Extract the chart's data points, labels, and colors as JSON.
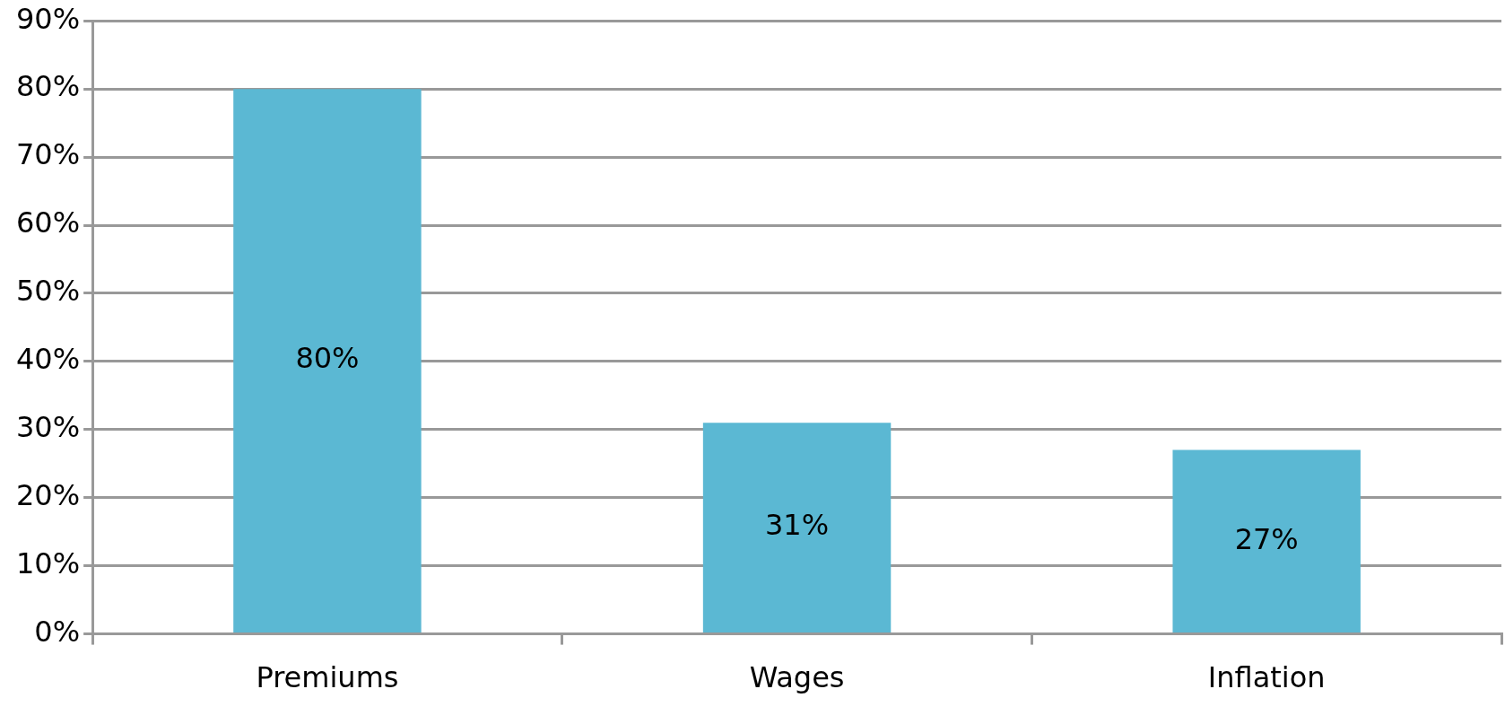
{
  "chart_data": {
    "type": "bar",
    "categories": [
      "Premiums",
      "Wages",
      "Inflation"
    ],
    "values": [
      80,
      31,
      27
    ],
    "color": "#5bb8d3",
    "ylim": [
      0,
      90
    ],
    "yticks": [
      {
        "value": 0,
        "label": "0%"
      },
      {
        "value": 10,
        "label": "10%"
      },
      {
        "value": 20,
        "label": "20%"
      },
      {
        "value": 30,
        "label": "30%"
      },
      {
        "value": 40,
        "label": "40%"
      },
      {
        "value": 50,
        "label": "50%"
      },
      {
        "value": 60,
        "label": "60%"
      },
      {
        "value": 70,
        "label": "70%"
      },
      {
        "value": 80,
        "label": "80%"
      },
      {
        "value": 90,
        "label": "90%"
      }
    ],
    "grid": "y",
    "value_labels": [
      "80%",
      "31%",
      "27%"
    ]
  }
}
